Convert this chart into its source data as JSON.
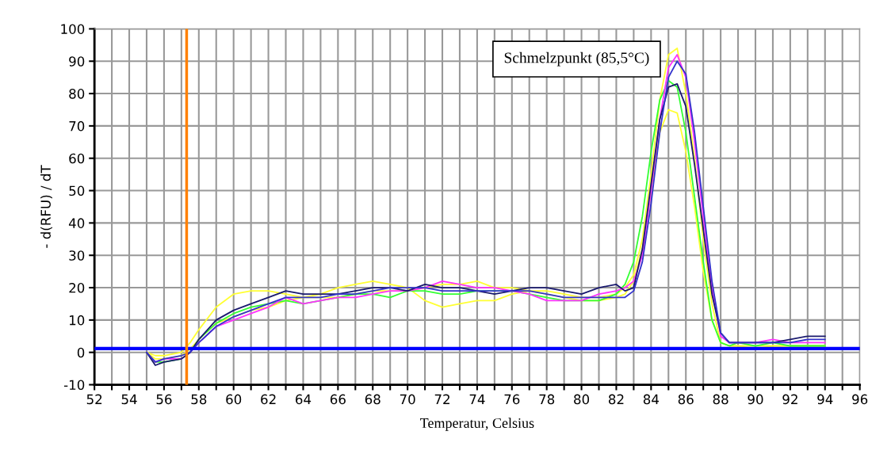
{
  "chart_data": {
    "type": "line",
    "xlabel": "Temperatur, Celsius",
    "ylabel": "- d(RFU) / dT",
    "annotations": [
      "Schmelzpunkt (85,5°C)"
    ],
    "x": [
      55,
      55.5,
      56,
      57,
      57.5,
      58,
      59,
      60,
      61,
      62,
      63,
      64,
      65,
      66,
      67,
      68,
      69,
      70,
      71,
      72,
      73,
      74,
      75,
      76,
      77,
      78,
      79,
      80,
      81,
      82,
      82.5,
      83,
      83.5,
      84,
      84.5,
      85,
      85.5,
      86,
      86.5,
      87,
      87.5,
      88,
      88.5,
      89,
      90,
      91,
      92,
      93,
      94
    ],
    "series": [
      {
        "color": "#ffff33",
        "values": [
          0,
          -1,
          -1,
          0,
          3,
          7,
          14,
          18,
          19,
          19,
          18,
          17,
          18,
          20,
          21,
          22,
          21,
          20,
          16,
          14,
          15,
          16,
          16,
          18,
          19,
          19,
          18,
          17,
          17,
          18,
          20,
          24,
          35,
          55,
          78,
          92,
          94,
          80,
          60,
          35,
          15,
          3,
          2,
          2,
          2,
          2,
          2,
          2,
          2
        ]
      },
      {
        "color": "#ffff33",
        "values": [
          0,
          -2,
          -2,
          -1,
          1,
          4,
          9,
          11,
          13,
          14,
          16,
          17,
          17,
          17,
          18,
          19,
          19,
          19,
          20,
          21,
          21,
          22,
          20,
          20,
          19,
          18,
          17,
          16,
          16,
          17,
          18,
          22,
          32,
          50,
          68,
          75,
          74,
          62,
          45,
          25,
          10,
          3,
          2,
          2,
          1,
          2,
          2,
          2,
          2
        ]
      },
      {
        "color": "#33ff33",
        "values": [
          0,
          -3,
          -3,
          -2,
          0,
          4,
          9,
          12,
          14,
          15,
          16,
          15,
          16,
          17,
          18,
          18,
          17,
          19,
          19,
          18,
          18,
          19,
          19,
          19,
          18,
          17,
          16,
          16,
          16,
          18,
          21,
          28,
          42,
          62,
          78,
          84,
          82,
          68,
          48,
          28,
          10,
          3,
          2,
          3,
          2,
          3,
          2,
          2,
          2
        ]
      },
      {
        "color": "#ff33ff",
        "values": [
          0,
          -3,
          -2,
          -2,
          0,
          3,
          8,
          10,
          12,
          14,
          17,
          15,
          16,
          17,
          17,
          18,
          19,
          19,
          20,
          22,
          21,
          20,
          20,
          19,
          18,
          16,
          16,
          16,
          18,
          19,
          20,
          22,
          30,
          50,
          72,
          88,
          92,
          85,
          65,
          42,
          20,
          5,
          3,
          3,
          3,
          4,
          3,
          3,
          3
        ]
      },
      {
        "color": "#1a1a6e",
        "values": [
          0,
          -4,
          -3,
          -2,
          0,
          4,
          10,
          13,
          15,
          17,
          19,
          18,
          18,
          18,
          19,
          20,
          20,
          19,
          21,
          20,
          20,
          19,
          18,
          19,
          20,
          20,
          19,
          18,
          20,
          21,
          19,
          20,
          32,
          52,
          72,
          82,
          83,
          76,
          58,
          38,
          18,
          6,
          3,
          3,
          3,
          3,
          4,
          5,
          5
        ]
      },
      {
        "color": "#3333cc",
        "values": [
          0,
          -3,
          -2,
          -1,
          0,
          3,
          8,
          11,
          13,
          15,
          17,
          17,
          17,
          18,
          18,
          19,
          20,
          20,
          20,
          19,
          19,
          19,
          19,
          19,
          19,
          18,
          17,
          17,
          17,
          17,
          17,
          19,
          28,
          46,
          68,
          85,
          90,
          86,
          68,
          45,
          22,
          6,
          3,
          3,
          3,
          3,
          3,
          4,
          4
        ]
      }
    ],
    "ref_lines": [
      {
        "axis": "y",
        "value": 1.2,
        "color": "#0000ff"
      },
      {
        "axis": "x",
        "value": 57.3,
        "color": "#ff8000"
      }
    ],
    "xlim": [
      52,
      96
    ],
    "ylim": [
      -10,
      100
    ],
    "xticks": [
      52,
      {
        "value": 53,
        "label": null
      },
      54,
      {
        "value": 55,
        "label": null
      },
      56,
      {
        "value": 57,
        "label": null
      },
      58,
      {
        "value": 59,
        "label": null
      },
      60,
      {
        "value": 61,
        "label": null
      },
      62,
      {
        "value": 63,
        "label": null
      },
      64,
      {
        "value": 65,
        "label": null
      },
      66,
      {
        "value": 67,
        "label": null
      },
      68,
      {
        "value": 69,
        "label": null
      },
      70,
      {
        "value": 71,
        "label": null
      },
      72,
      {
        "value": 73,
        "label": null
      },
      74,
      {
        "value": 75,
        "label": null
      },
      76,
      {
        "value": 77,
        "label": null
      },
      78,
      {
        "value": 79,
        "label": null
      },
      80,
      {
        "value": 81,
        "label": null
      },
      82,
      {
        "value": 83,
        "label": null
      },
      84,
      {
        "value": 85,
        "label": null
      },
      86,
      {
        "value": 87,
        "label": null
      },
      88,
      {
        "value": 89,
        "label": null
      },
      90,
      {
        "value": 91,
        "label": null
      },
      92,
      {
        "value": 93,
        "label": null
      },
      94,
      {
        "value": 95,
        "label": null
      },
      96
    ],
    "yticks": [
      -10,
      0,
      10,
      20,
      30,
      40,
      50,
      60,
      70,
      80,
      90,
      100
    ],
    "grid": true
  }
}
